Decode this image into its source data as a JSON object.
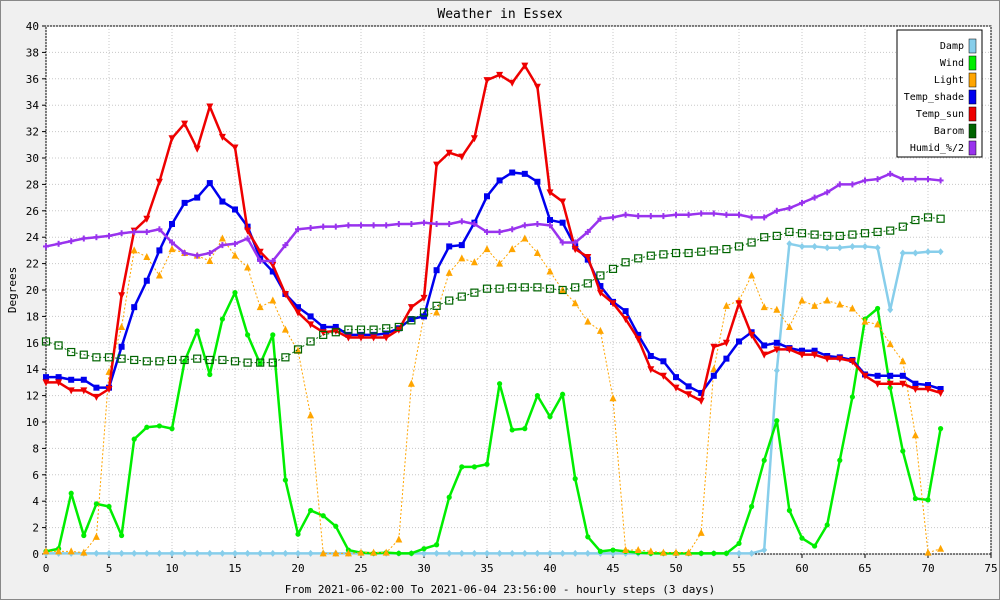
{
  "chart_data": {
    "type": "line",
    "title": "Weather in Essex",
    "ylabel": "Degrees",
    "xlabel": "From 2021-06-02:00 To 2021-06-04 23:56:00 - hourly steps (3 days)",
    "xlim": [
      0,
      75
    ],
    "ylim": [
      0,
      40
    ],
    "x_ticks": [
      0,
      5,
      10,
      15,
      20,
      25,
      30,
      35,
      40,
      45,
      50,
      55,
      60,
      65,
      70,
      75
    ],
    "y_ticks": [
      0,
      2,
      4,
      6,
      8,
      10,
      12,
      14,
      16,
      18,
      20,
      22,
      24,
      26,
      28,
      30,
      32,
      34,
      36,
      38,
      40
    ],
    "grid": true,
    "legend_position": "top-right",
    "x": [
      0,
      1,
      2,
      3,
      4,
      5,
      6,
      7,
      8,
      9,
      10,
      11,
      12,
      13,
      14,
      15,
      16,
      17,
      18,
      19,
      20,
      21,
      22,
      23,
      24,
      25,
      26,
      27,
      28,
      29,
      30,
      31,
      32,
      33,
      34,
      35,
      36,
      37,
      38,
      39,
      40,
      41,
      42,
      43,
      44,
      45,
      46,
      47,
      48,
      49,
      50,
      51,
      52,
      53,
      54,
      55,
      56,
      57,
      58,
      59,
      60,
      61,
      62,
      63,
      64,
      65,
      66,
      67,
      68,
      69,
      70,
      71
    ],
    "series": [
      {
        "name": "Damp",
        "color": "#87ceeb",
        "marker": "diamond",
        "width": 2.5,
        "values": [
          0.05,
          0.05,
          0.05,
          0.05,
          0.05,
          0.05,
          0.05,
          0.05,
          0.05,
          0.05,
          0.05,
          0.05,
          0.05,
          0.05,
          0.05,
          0.05,
          0.05,
          0.05,
          0.05,
          0.05,
          0.05,
          0.05,
          0.05,
          0.05,
          0.05,
          0.05,
          0.05,
          0.05,
          0.05,
          0.05,
          0.05,
          0.05,
          0.05,
          0.05,
          0.05,
          0.05,
          0.05,
          0.05,
          0.05,
          0.05,
          0.05,
          0.05,
          0.05,
          0.05,
          0.05,
          0.05,
          0.05,
          0.05,
          0.05,
          0.05,
          0.05,
          0.05,
          0.05,
          0.05,
          0.05,
          0.05,
          0.05,
          0.3,
          13.9,
          23.5,
          23.3,
          23.3,
          23.2,
          23.2,
          23.3,
          23.3,
          23.2,
          18.5,
          22.8,
          22.8,
          22.9,
          22.9
        ]
      },
      {
        "name": "Wind",
        "color": "#00ee00",
        "marker": "circle",
        "width": 2.5,
        "values": [
          0.2,
          0.4,
          4.6,
          1.4,
          3.8,
          3.6,
          1.4,
          8.7,
          9.6,
          9.7,
          9.5,
          14.6,
          16.9,
          13.6,
          17.8,
          19.8,
          16.6,
          14.4,
          16.6,
          5.6,
          1.5,
          3.3,
          2.9,
          2.1,
          0.3,
          0.1,
          0.05,
          0.1,
          0.05,
          0.05,
          0.4,
          0.7,
          4.3,
          6.6,
          6.6,
          6.8,
          12.9,
          9.4,
          9.5,
          12.0,
          10.4,
          12.1,
          5.7,
          1.3,
          0.2,
          0.3,
          0.2,
          0.1,
          0.05,
          0.05,
          0.05,
          0.05,
          0.05,
          0.05,
          0.05,
          0.8,
          3.6,
          7.1,
          10.1,
          3.3,
          1.2,
          0.6,
          2.2,
          7.1,
          11.9,
          17.8,
          18.6,
          12.6,
          7.8,
          4.2,
          4.1,
          9.5
        ]
      },
      {
        "name": "Light",
        "color": "#ffa500",
        "marker": "triangle-up",
        "width": 1,
        "dashed": true,
        "values": [
          0.2,
          0.2,
          0.2,
          0.1,
          1.3,
          13.8,
          17.2,
          23.0,
          22.5,
          21.1,
          23.1,
          22.8,
          22.6,
          22.2,
          23.9,
          22.6,
          21.7,
          18.7,
          19.2,
          17.0,
          15.4,
          10.5,
          0.05,
          0.05,
          0.05,
          0.1,
          0.1,
          0.1,
          1.1,
          12.9,
          18.1,
          18.3,
          21.3,
          22.4,
          22.1,
          23.1,
          22.0,
          23.1,
          23.9,
          22.8,
          21.4,
          20.0,
          19.0,
          17.6,
          16.9,
          11.8,
          0.3,
          0.3,
          0.2,
          0.1,
          0.1,
          0.1,
          1.6,
          14.0,
          18.8,
          19.2,
          21.1,
          18.7,
          18.5,
          17.2,
          19.2,
          18.8,
          19.2,
          18.9,
          18.6,
          17.6,
          17.4,
          15.9,
          14.6,
          9.0,
          0.1,
          0.4
        ]
      },
      {
        "name": "Temp_shade",
        "color": "#0000ee",
        "marker": "square",
        "width": 2.5,
        "values": [
          13.4,
          13.4,
          13.2,
          13.2,
          12.6,
          12.6,
          15.7,
          18.7,
          20.7,
          23.0,
          25.0,
          26.6,
          27.0,
          28.1,
          26.7,
          26.1,
          24.8,
          22.4,
          21.4,
          19.7,
          18.7,
          18.0,
          17.2,
          17.2,
          16.6,
          16.6,
          16.6,
          16.7,
          17.1,
          17.8,
          18.0,
          21.5,
          23.3,
          23.4,
          25.1,
          27.1,
          28.3,
          28.9,
          28.8,
          28.2,
          25.3,
          25.1,
          23.3,
          22.3,
          20.3,
          19.1,
          18.4,
          16.6,
          15.0,
          14.6,
          13.4,
          12.7,
          12.2,
          13.5,
          14.8,
          16.1,
          16.8,
          15.8,
          16.0,
          15.6,
          15.4,
          15.4,
          15.0,
          14.9,
          14.7,
          13.6,
          13.5,
          13.5,
          13.5,
          12.9,
          12.8,
          12.5
        ]
      },
      {
        "name": "Temp_sun",
        "color": "#ee0000",
        "marker": "triangle-down",
        "width": 2.5,
        "values": [
          13.0,
          13.0,
          12.4,
          12.4,
          11.9,
          12.5,
          19.6,
          24.5,
          25.4,
          28.2,
          31.5,
          32.6,
          30.7,
          33.9,
          31.6,
          30.8,
          24.5,
          22.9,
          21.9,
          19.7,
          18.3,
          17.4,
          16.8,
          16.9,
          16.4,
          16.4,
          16.4,
          16.4,
          17.0,
          18.7,
          19.4,
          29.5,
          30.4,
          30.1,
          31.5,
          35.9,
          36.3,
          35.7,
          37.0,
          35.4,
          27.4,
          26.7,
          23.1,
          22.5,
          19.8,
          19.0,
          17.8,
          16.3,
          14.0,
          13.5,
          12.6,
          12.1,
          11.6,
          15.7,
          16.0,
          19.0,
          16.6,
          15.1,
          15.5,
          15.5,
          15.1,
          15.1,
          14.8,
          14.8,
          14.6,
          13.5,
          12.9,
          12.9,
          12.9,
          12.5,
          12.5,
          12.2
        ]
      },
      {
        "name": "Barom",
        "color": "#006400",
        "marker": "square-open",
        "width": 1,
        "dashed": true,
        "values": [
          16.1,
          15.8,
          15.3,
          15.1,
          14.9,
          14.9,
          14.8,
          14.7,
          14.6,
          14.6,
          14.7,
          14.7,
          14.8,
          14.7,
          14.7,
          14.6,
          14.5,
          14.5,
          14.5,
          14.9,
          15.5,
          16.1,
          16.6,
          16.8,
          17.0,
          17.0,
          17.0,
          17.1,
          17.2,
          17.7,
          18.3,
          18.8,
          19.2,
          19.5,
          19.8,
          20.1,
          20.1,
          20.2,
          20.2,
          20.2,
          20.1,
          20.0,
          20.2,
          20.5,
          21.1,
          21.6,
          22.1,
          22.4,
          22.6,
          22.7,
          22.8,
          22.8,
          22.9,
          23.0,
          23.1,
          23.3,
          23.6,
          24.0,
          24.1,
          24.4,
          24.3,
          24.2,
          24.1,
          24.1,
          24.2,
          24.3,
          24.4,
          24.5,
          24.8,
          25.3,
          25.5,
          25.4
        ]
      },
      {
        "name": "Humid_%/2",
        "color": "#9933ee",
        "marker": "cross",
        "width": 2.5,
        "values": [
          23.3,
          23.5,
          23.7,
          23.9,
          24.0,
          24.1,
          24.3,
          24.4,
          24.4,
          24.6,
          23.6,
          22.8,
          22.6,
          22.8,
          23.4,
          23.5,
          23.9,
          22.2,
          22.2,
          23.4,
          24.6,
          24.7,
          24.8,
          24.8,
          24.9,
          24.9,
          24.9,
          24.9,
          25.0,
          25.0,
          25.1,
          25.0,
          25.0,
          25.2,
          25.0,
          24.4,
          24.4,
          24.6,
          24.9,
          25.0,
          24.9,
          23.6,
          23.6,
          24.4,
          25.4,
          25.5,
          25.7,
          25.6,
          25.6,
          25.6,
          25.7,
          25.7,
          25.8,
          25.8,
          25.7,
          25.7,
          25.5,
          25.5,
          26.0,
          26.2,
          26.6,
          27.0,
          27.4,
          28.0,
          28.0,
          28.3,
          28.4,
          28.8,
          28.4,
          28.4,
          28.4,
          28.3
        ]
      }
    ]
  }
}
